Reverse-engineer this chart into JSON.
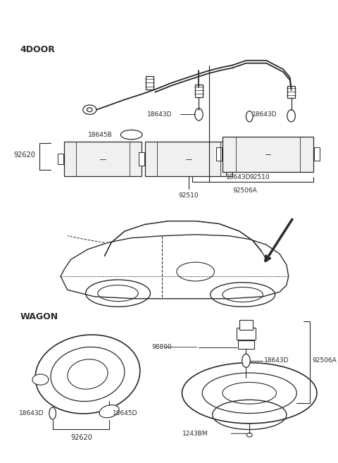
{
  "bg_color": "#ffffff",
  "lc": "#2a2a2a",
  "fig_w": 4.8,
  "fig_h": 6.57,
  "dpi": 100,
  "labels": {
    "4door": "4DOOR",
    "wagon": "WAGON",
    "92620": "92620",
    "18645B": "18645B",
    "18643D": "18643D",
    "18643D_r": "18643D",
    "18643D_rb": "18643D",
    "92510_l": "92510",
    "92510_r": "92510",
    "92506A": "92506A",
    "92620w": "92620",
    "18643D_wl": "18643D",
    "18645D_w": "18645D",
    "98890": "98890",
    "18643D_wr": "18643D",
    "92506A_w": "92506A",
    "1243BM": "1243BM"
  }
}
